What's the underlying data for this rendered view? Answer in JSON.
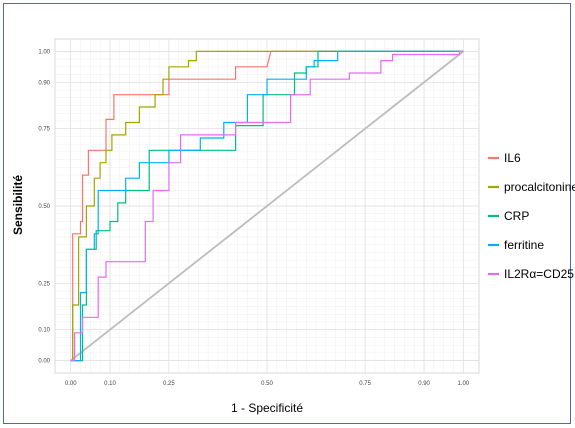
{
  "chart_data": {
    "type": "line",
    "title": "",
    "xlabel": "1 - Specificité",
    "ylabel": "Sensibilité",
    "xlim": [
      -0.04,
      1.04
    ],
    "ylim": [
      -0.04,
      1.04
    ],
    "x_ticks": [
      0.0,
      0.1,
      0.25,
      0.5,
      0.75,
      0.9,
      1.0
    ],
    "x_tick_labels": [
      "0.00",
      "0.10",
      "0.25",
      "0.50",
      "0.75",
      "0.90",
      "1.00"
    ],
    "y_ticks": [
      0.0,
      0.1,
      0.25,
      0.5,
      0.75,
      0.9,
      1.0
    ],
    "y_tick_labels": [
      "0.00",
      "0.10",
      "0.25",
      "0.50",
      "0.75",
      "0.90",
      "1.00"
    ],
    "grid": true,
    "legend_position": "right",
    "reference_line": {
      "x": [
        0,
        1
      ],
      "y": [
        0,
        1
      ],
      "color": "#bdbdbd"
    },
    "series": [
      {
        "name": "IL6",
        "color": "#f8766d",
        "x": [
          0,
          0.005,
          0.005,
          0.025,
          0.025,
          0.03,
          0.03,
          0.045,
          0.045,
          0.09,
          0.09,
          0.11,
          0.11,
          0.14,
          0.14,
          0.25,
          0.25,
          0.42,
          0.42,
          0.5,
          0.51,
          1.0
        ],
        "y": [
          0,
          0,
          0.41,
          0.41,
          0.45,
          0.45,
          0.6,
          0.6,
          0.68,
          0.68,
          0.78,
          0.78,
          0.86,
          0.86,
          0.86,
          0.86,
          0.91,
          0.91,
          0.95,
          0.95,
          1.0,
          1.0
        ]
      },
      {
        "name": "procalcitonine",
        "color": "#a3a500",
        "x": [
          0,
          0.005,
          0.005,
          0.02,
          0.02,
          0.04,
          0.04,
          0.06,
          0.06,
          0.075,
          0.075,
          0.09,
          0.09,
          0.105,
          0.105,
          0.14,
          0.14,
          0.175,
          0.175,
          0.215,
          0.215,
          0.235,
          0.235,
          0.25,
          0.25,
          0.3,
          0.3,
          0.32,
          0.32,
          0.65,
          1.0
        ],
        "y": [
          0,
          0,
          0.18,
          0.18,
          0.4,
          0.4,
          0.5,
          0.5,
          0.59,
          0.59,
          0.64,
          0.64,
          0.68,
          0.68,
          0.73,
          0.73,
          0.77,
          0.77,
          0.82,
          0.82,
          0.86,
          0.86,
          0.91,
          0.91,
          0.95,
          0.95,
          0.97,
          0.97,
          1.0,
          1.0,
          1.0
        ]
      },
      {
        "name": "CRP",
        "color": "#00bf7d",
        "x": [
          0,
          0.03,
          0.03,
          0.04,
          0.04,
          0.065,
          0.065,
          0.1,
          0.1,
          0.12,
          0.12,
          0.14,
          0.14,
          0.2,
          0.2,
          0.42,
          0.42,
          0.49,
          0.49,
          0.57,
          0.57,
          0.6,
          0.6,
          0.63,
          0.63,
          1.0
        ],
        "y": [
          0,
          0,
          0.18,
          0.18,
          0.36,
          0.36,
          0.42,
          0.42,
          0.45,
          0.45,
          0.51,
          0.51,
          0.55,
          0.55,
          0.68,
          0.68,
          0.76,
          0.76,
          0.86,
          0.86,
          0.93,
          0.93,
          0.95,
          0.95,
          1.0,
          1.0
        ]
      },
      {
        "name": "ferritine",
        "color": "#00b0f6",
        "x": [
          0,
          0.025,
          0.025,
          0.04,
          0.04,
          0.06,
          0.06,
          0.07,
          0.07,
          0.14,
          0.14,
          0.175,
          0.175,
          0.25,
          0.25,
          0.33,
          0.33,
          0.39,
          0.39,
          0.45,
          0.45,
          0.5,
          0.5,
          0.6,
          0.6,
          0.62,
          0.62,
          0.68,
          0.68,
          0.81,
          1.0
        ],
        "y": [
          0,
          0,
          0.22,
          0.22,
          0.36,
          0.36,
          0.41,
          0.41,
          0.55,
          0.55,
          0.59,
          0.59,
          0.64,
          0.64,
          0.68,
          0.68,
          0.72,
          0.72,
          0.77,
          0.77,
          0.86,
          0.86,
          0.91,
          0.91,
          0.95,
          0.95,
          0.97,
          0.97,
          1.0,
          1.0,
          1.0
        ]
      },
      {
        "name": "IL2Rα=CD25",
        "color": "#e76bf3",
        "x": [
          0,
          0.01,
          0.01,
          0.03,
          0.03,
          0.07,
          0.07,
          0.09,
          0.09,
          0.19,
          0.19,
          0.21,
          0.21,
          0.25,
          0.25,
          0.28,
          0.28,
          0.42,
          0.42,
          0.56,
          0.56,
          0.61,
          0.61,
          0.71,
          0.71,
          0.79,
          0.79,
          0.82,
          0.82,
          0.99,
          0.99,
          1.0
        ],
        "y": [
          0,
          0,
          0.09,
          0.09,
          0.14,
          0.14,
          0.27,
          0.27,
          0.32,
          0.32,
          0.45,
          0.45,
          0.55,
          0.55,
          0.64,
          0.64,
          0.73,
          0.73,
          0.77,
          0.77,
          0.86,
          0.86,
          0.91,
          0.91,
          0.93,
          0.93,
          0.97,
          0.97,
          0.99,
          0.99,
          1.0,
          1.0
        ]
      }
    ]
  }
}
